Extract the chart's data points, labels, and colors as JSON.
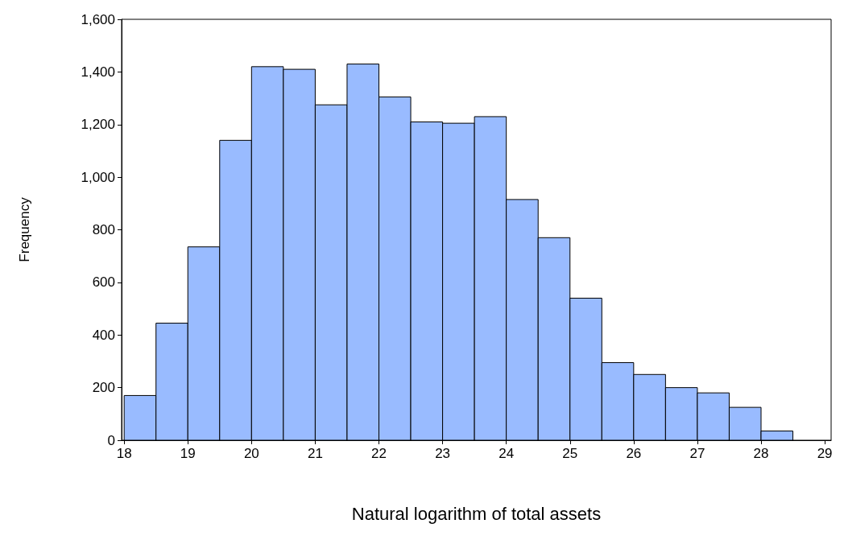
{
  "chart_data": {
    "type": "histogram",
    "xlabel": "Natural logarithm of total assets",
    "ylabel": "Frequency",
    "bins": [
      18,
      18.5,
      19,
      19.5,
      20,
      20.5,
      21,
      21.5,
      22,
      22.5,
      23,
      23.5,
      24,
      24.5,
      25,
      25.5,
      26,
      26.5,
      27,
      27.5,
      28,
      28.5
    ],
    "values": [
      170,
      445,
      735,
      1140,
      1420,
      1410,
      1275,
      1430,
      1305,
      1210,
      1205,
      1230,
      915,
      770,
      540,
      295,
      250,
      200,
      180,
      125,
      35
    ],
    "color": "#99bbff",
    "xlim": [
      17.96,
      29.1
    ],
    "xticks": [
      18,
      19,
      20,
      21,
      22,
      23,
      24,
      25,
      26,
      27,
      28,
      29
    ],
    "ylim": [
      0,
      1600
    ],
    "yticks": [
      0,
      200,
      400,
      600,
      800,
      {
        "value": 1000,
        "label": "1,000"
      },
      {
        "value": 1200,
        "label": "1,200"
      },
      {
        "value": 1400,
        "label": "1,400"
      },
      {
        "value": 1600,
        "label": "1,600"
      }
    ],
    "grid": false
  }
}
